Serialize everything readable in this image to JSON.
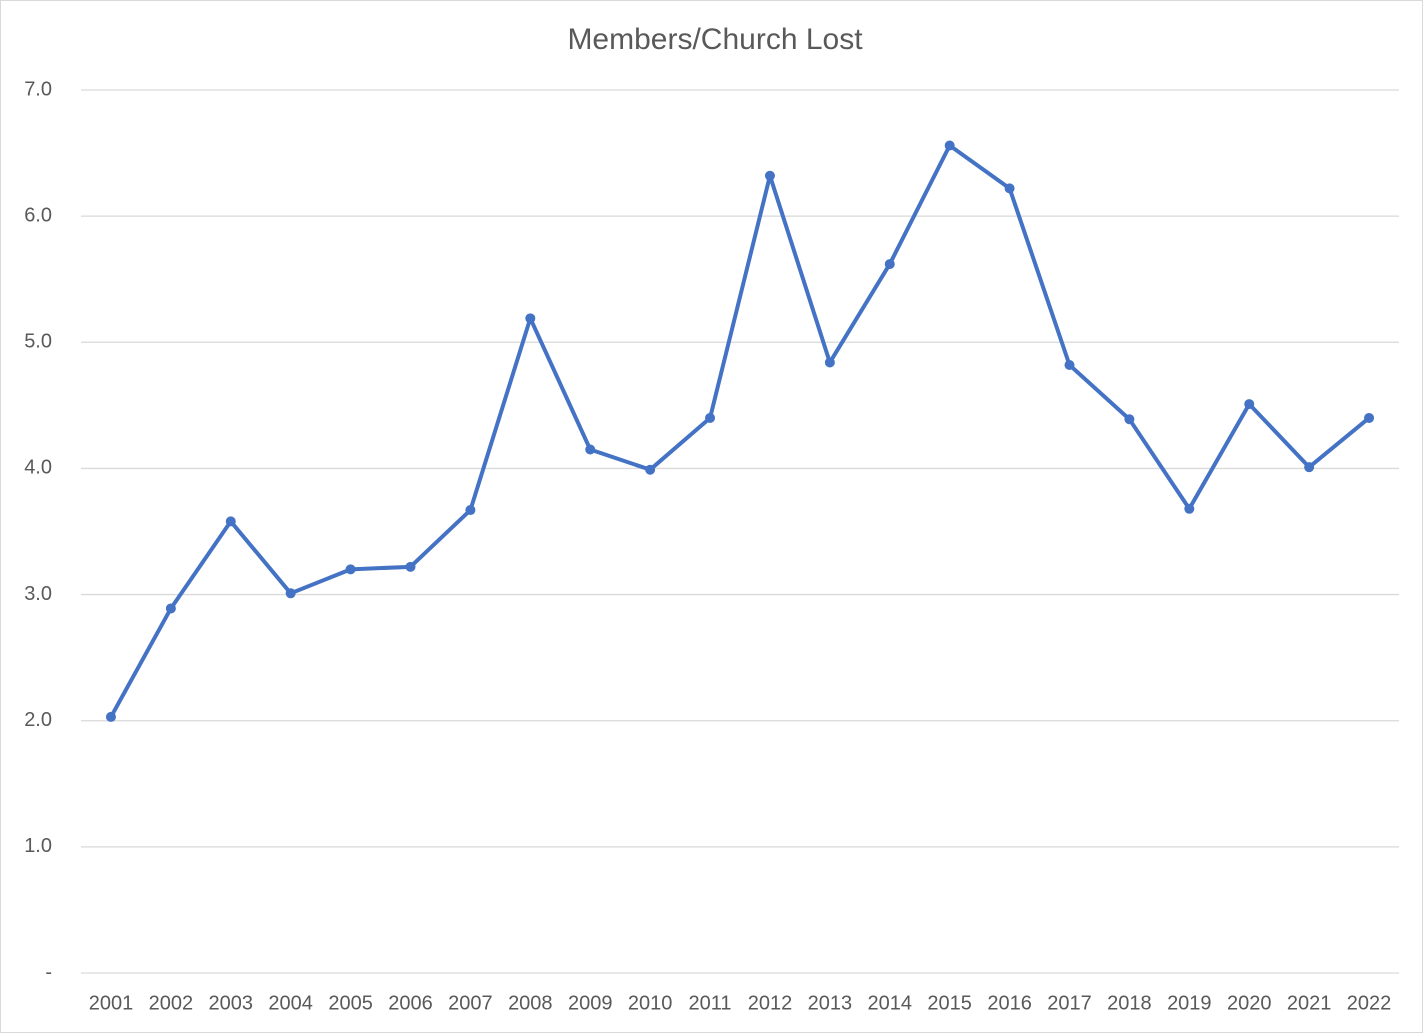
{
  "chart_data": {
    "type": "line",
    "title": "Members/Church Lost",
    "categories": [
      "2001",
      "2002",
      "2003",
      "2004",
      "2005",
      "2006",
      "2007",
      "2008",
      "2009",
      "2010",
      "2011",
      "2012",
      "2013",
      "2014",
      "2015",
      "2016",
      "2017",
      "2018",
      "2019",
      "2020",
      "2021",
      "2022"
    ],
    "values": [
      2.03,
      2.89,
      3.58,
      3.01,
      3.2,
      3.22,
      3.67,
      5.19,
      4.15,
      3.99,
      4.4,
      6.32,
      4.84,
      5.62,
      6.56,
      6.22,
      4.82,
      4.39,
      3.68,
      4.51,
      4.01,
      4.4
    ],
    "color": "#4472c4",
    "ylim": [
      0,
      7
    ],
    "yticks": [
      {
        "value": 0,
        "label": "-"
      },
      {
        "value": 1,
        "label": "1.0"
      },
      {
        "value": 2,
        "label": "2.0"
      },
      {
        "value": 3,
        "label": "3.0"
      },
      {
        "value": 4,
        "label": "4.0"
      },
      {
        "value": 5,
        "label": "5.0"
      },
      {
        "value": 6,
        "label": "6.0"
      },
      {
        "value": 7,
        "label": "7.0"
      }
    ],
    "grid": true
  }
}
